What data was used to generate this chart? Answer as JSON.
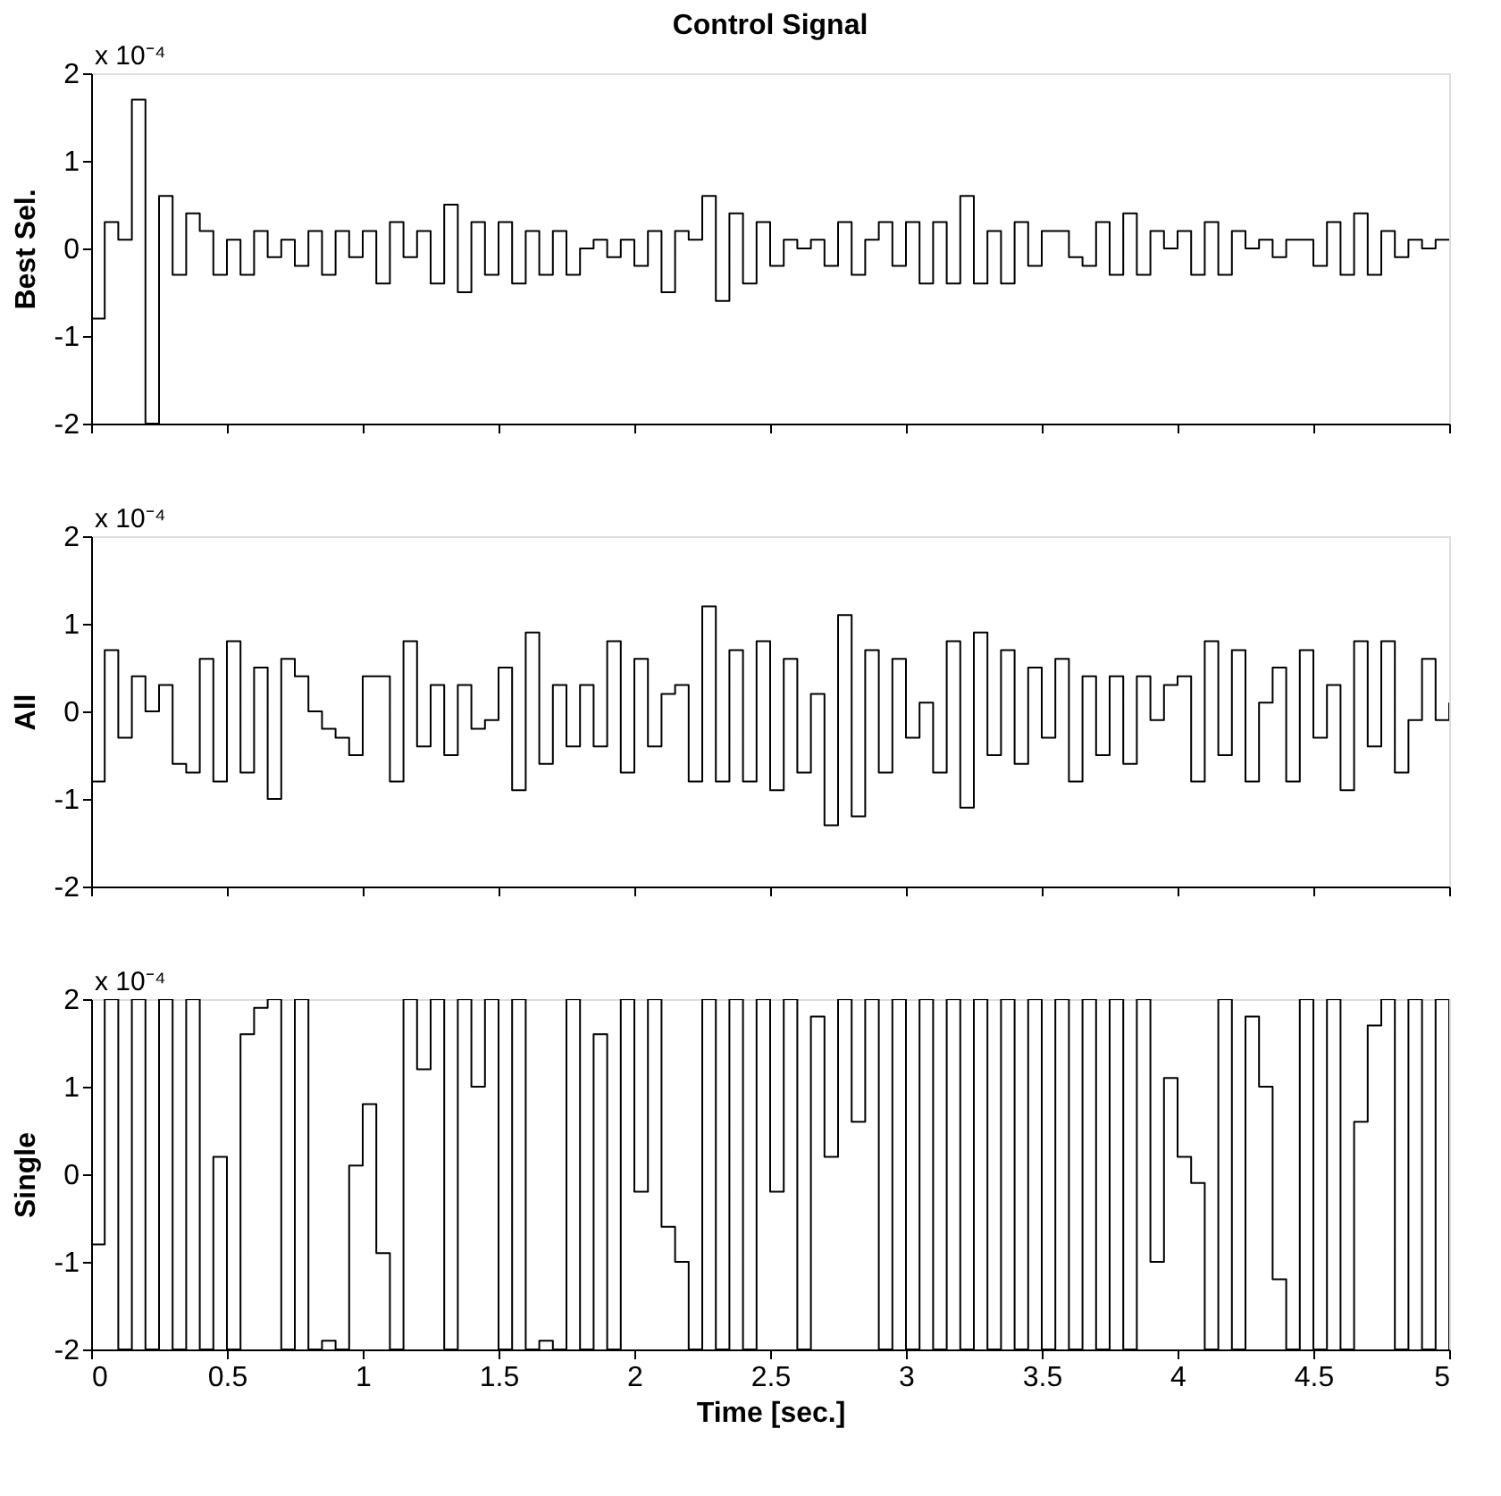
{
  "chart_data": [
    {
      "type": "step",
      "title": "Control Signal",
      "ylabel": "Best Sel.",
      "color": "#000000",
      "grid": false,
      "tick_labels": "y",
      "annotations": [
        "x 10⁻⁴"
      ],
      "x": [
        0,
        0.05,
        0.1,
        0.15,
        0.2,
        0.25,
        0.3,
        0.35,
        0.4,
        0.45,
        0.5,
        0.55,
        0.6,
        0.65,
        0.7,
        0.75,
        0.8,
        0.85,
        0.9,
        0.95,
        1,
        1.05,
        1.1,
        1.15,
        1.2,
        1.25,
        1.3,
        1.35,
        1.4,
        1.45,
        1.5,
        1.55,
        1.6,
        1.65,
        1.7,
        1.75,
        1.8,
        1.85,
        1.9,
        1.95,
        2,
        2.05,
        2.1,
        2.15,
        2.2,
        2.25,
        2.3,
        2.35,
        2.4,
        2.45,
        2.5,
        2.55,
        2.6,
        2.65,
        2.7,
        2.75,
        2.8,
        2.85,
        2.9,
        2.95,
        3,
        3.05,
        3.1,
        3.15,
        3.2,
        3.25,
        3.3,
        3.35,
        3.4,
        3.45,
        3.5,
        3.55,
        3.6,
        3.65,
        3.7,
        3.75,
        3.8,
        3.85,
        3.9,
        3.95,
        4,
        4.05,
        4.1,
        4.15,
        4.2,
        4.25,
        4.3,
        4.35,
        4.4,
        4.45,
        4.5,
        4.55,
        4.6,
        4.65,
        4.7,
        4.75,
        4.8,
        4.85,
        4.9,
        4.95,
        5
      ],
      "values": [
        -0.8,
        0.3,
        0.1,
        1.7,
        -2,
        0.6,
        -0.3,
        0.4,
        0.2,
        -0.3,
        0.1,
        -0.3,
        0.2,
        -0.1,
        0.1,
        -0.2,
        0.2,
        -0.3,
        0.2,
        -0.1,
        0.2,
        -0.4,
        0.3,
        -0.1,
        0.2,
        -0.4,
        0.5,
        -0.5,
        0.3,
        -0.3,
        0.3,
        -0.4,
        0.2,
        -0.3,
        0.2,
        -0.3,
        0,
        0.1,
        -0.1,
        0.1,
        -0.2,
        0.2,
        -0.5,
        0.2,
        0.1,
        0.6,
        -0.6,
        0.4,
        -0.4,
        0.3,
        -0.2,
        0.1,
        0,
        0.1,
        -0.2,
        0.3,
        -0.3,
        0.1,
        0.3,
        -0.2,
        0.3,
        -0.4,
        0.3,
        -0.4,
        0.6,
        -0.4,
        0.2,
        -0.4,
        0.3,
        -0.2,
        0.2,
        0.2,
        -0.1,
        -0.2,
        0.3,
        -0.3,
        0.4,
        -0.3,
        0.2,
        0,
        0.2,
        -0.3,
        0.3,
        -0.3,
        0.2,
        0,
        0.1,
        -0.1,
        0.1,
        0.1,
        -0.2,
        0.3,
        -0.3,
        0.4,
        -0.3,
        0.2,
        -0.1,
        0.1,
        0,
        0.1,
        0.1
      ],
      "xlim": [
        0,
        5
      ],
      "xticks": [
        0,
        0.5,
        1,
        1.5,
        2,
        2.5,
        3,
        3.5,
        4,
        4.5,
        5
      ],
      "ylim": [
        -2,
        2
      ],
      "yticks": [
        -2,
        -1,
        0,
        1,
        2
      ]
    },
    {
      "type": "step",
      "ylabel": "All",
      "color": "#000000",
      "grid": false,
      "tick_labels": "y",
      "annotations": [
        "x 10⁻⁴"
      ],
      "x": [
        0,
        0.05,
        0.1,
        0.15,
        0.2,
        0.25,
        0.3,
        0.35,
        0.4,
        0.45,
        0.5,
        0.55,
        0.6,
        0.65,
        0.7,
        0.75,
        0.8,
        0.85,
        0.9,
        0.95,
        1,
        1.05,
        1.1,
        1.15,
        1.2,
        1.25,
        1.3,
        1.35,
        1.4,
        1.45,
        1.5,
        1.55,
        1.6,
        1.65,
        1.7,
        1.75,
        1.8,
        1.85,
        1.9,
        1.95,
        2,
        2.05,
        2.1,
        2.15,
        2.2,
        2.25,
        2.3,
        2.35,
        2.4,
        2.45,
        2.5,
        2.55,
        2.6,
        2.65,
        2.7,
        2.75,
        2.8,
        2.85,
        2.9,
        2.95,
        3,
        3.05,
        3.1,
        3.15,
        3.2,
        3.25,
        3.3,
        3.35,
        3.4,
        3.45,
        3.5,
        3.55,
        3.6,
        3.65,
        3.7,
        3.75,
        3.8,
        3.85,
        3.9,
        3.95,
        4,
        4.05,
        4.1,
        4.15,
        4.2,
        4.25,
        4.3,
        4.35,
        4.4,
        4.45,
        4.5,
        4.55,
        4.6,
        4.65,
        4.7,
        4.75,
        4.8,
        4.85,
        4.9,
        4.95,
        5
      ],
      "values": [
        -0.8,
        0.7,
        -0.3,
        0.4,
        0,
        0.3,
        -0.6,
        -0.7,
        0.6,
        -0.8,
        0.8,
        -0.7,
        0.5,
        -1.0,
        0.6,
        0.4,
        0,
        -0.2,
        -0.3,
        -0.5,
        0.4,
        0.4,
        -0.8,
        0.8,
        -0.4,
        0.3,
        -0.5,
        0.3,
        -0.2,
        -0.1,
        0.5,
        -0.9,
        0.9,
        -0.6,
        0.3,
        -0.4,
        0.3,
        -0.4,
        0.8,
        -0.7,
        0.6,
        -0.4,
        0.2,
        0.3,
        -0.8,
        1.2,
        -0.8,
        0.7,
        -0.8,
        0.8,
        -0.9,
        0.6,
        -0.7,
        0.2,
        -1.3,
        1.1,
        -1.2,
        0.7,
        -0.7,
        0.6,
        -0.3,
        0.1,
        -0.7,
        0.8,
        -1.1,
        0.9,
        -0.5,
        0.7,
        -0.6,
        0.5,
        -0.3,
        0.6,
        -0.8,
        0.4,
        -0.5,
        0.4,
        -0.6,
        0.4,
        -0.1,
        0.3,
        0.4,
        -0.8,
        0.8,
        -0.5,
        0.7,
        -0.8,
        0.1,
        0.5,
        -0.8,
        0.7,
        -0.3,
        0.3,
        -0.9,
        0.8,
        -0.4,
        0.8,
        -0.7,
        -0.1,
        0.6,
        -0.1,
        0.1
      ],
      "xlim": [
        0,
        5
      ],
      "xticks": [
        0,
        0.5,
        1,
        1.5,
        2,
        2.5,
        3,
        3.5,
        4,
        4.5,
        5
      ],
      "ylim": [
        -2,
        2
      ],
      "yticks": [
        -2,
        -1,
        0,
        1,
        2
      ]
    },
    {
      "type": "step",
      "ylabel": "Single",
      "xlabel": "Time [sec.]",
      "color": "#000000",
      "grid": false,
      "annotations": [
        "x 10⁻⁴"
      ],
      "x": [
        0,
        0.05,
        0.1,
        0.15,
        0.2,
        0.25,
        0.3,
        0.35,
        0.4,
        0.45,
        0.5,
        0.55,
        0.6,
        0.65,
        0.7,
        0.75,
        0.8,
        0.85,
        0.9,
        0.95,
        1,
        1.05,
        1.1,
        1.15,
        1.2,
        1.25,
        1.3,
        1.35,
        1.4,
        1.45,
        1.5,
        1.55,
        1.6,
        1.65,
        1.7,
        1.75,
        1.8,
        1.85,
        1.9,
        1.95,
        2,
        2.05,
        2.1,
        2.15,
        2.2,
        2.25,
        2.3,
        2.35,
        2.4,
        2.45,
        2.5,
        2.55,
        2.6,
        2.65,
        2.7,
        2.75,
        2.8,
        2.85,
        2.9,
        2.95,
        3,
        3.05,
        3.1,
        3.15,
        3.2,
        3.25,
        3.3,
        3.35,
        3.4,
        3.45,
        3.5,
        3.55,
        3.6,
        3.65,
        3.7,
        3.75,
        3.8,
        3.85,
        3.9,
        3.95,
        4,
        4.05,
        4.1,
        4.15,
        4.2,
        4.25,
        4.3,
        4.35,
        4.4,
        4.45,
        4.5,
        4.55,
        4.6,
        4.65,
        4.7,
        4.75,
        4.8,
        4.85,
        4.9,
        4.95,
        5
      ],
      "values": [
        -0.8,
        2,
        -2,
        2,
        -2,
        2,
        -2,
        2,
        -2,
        0.2,
        -2,
        1.6,
        1.9,
        2,
        -2,
        2,
        -2,
        -1.9,
        -2,
        0.1,
        0.8,
        -0.9,
        -2,
        2,
        1.2,
        2,
        -2,
        2,
        1.0,
        2,
        -2,
        2,
        -2,
        -1.9,
        -2,
        2,
        -2,
        1.6,
        -2,
        2,
        -0.2,
        2,
        -0.6,
        -1.0,
        -2,
        2,
        -2,
        2,
        -2,
        2,
        -0.2,
        2,
        -2,
        1.8,
        0.2,
        2,
        0.6,
        2,
        -2,
        2,
        -2,
        2,
        -2,
        2,
        -2,
        2,
        -2,
        2,
        -2,
        2,
        -2,
        2,
        -2,
        2,
        -2,
        2,
        -2,
        2,
        -1.0,
        1.1,
        0.2,
        -0.1,
        -2,
        2,
        -2,
        1.8,
        1.0,
        -1.2,
        -2,
        2,
        -2,
        2,
        -2,
        0.6,
        1.7,
        2,
        -2,
        2,
        -2,
        2,
        -2
      ],
      "xlim": [
        0,
        5
      ],
      "xticks": [
        0,
        0.5,
        1,
        1.5,
        2,
        2.5,
        3,
        3.5,
        4,
        4.5,
        5
      ],
      "ylim": [
        -2,
        2
      ],
      "yticks": [
        -2,
        -1,
        0,
        1,
        2
      ]
    }
  ]
}
